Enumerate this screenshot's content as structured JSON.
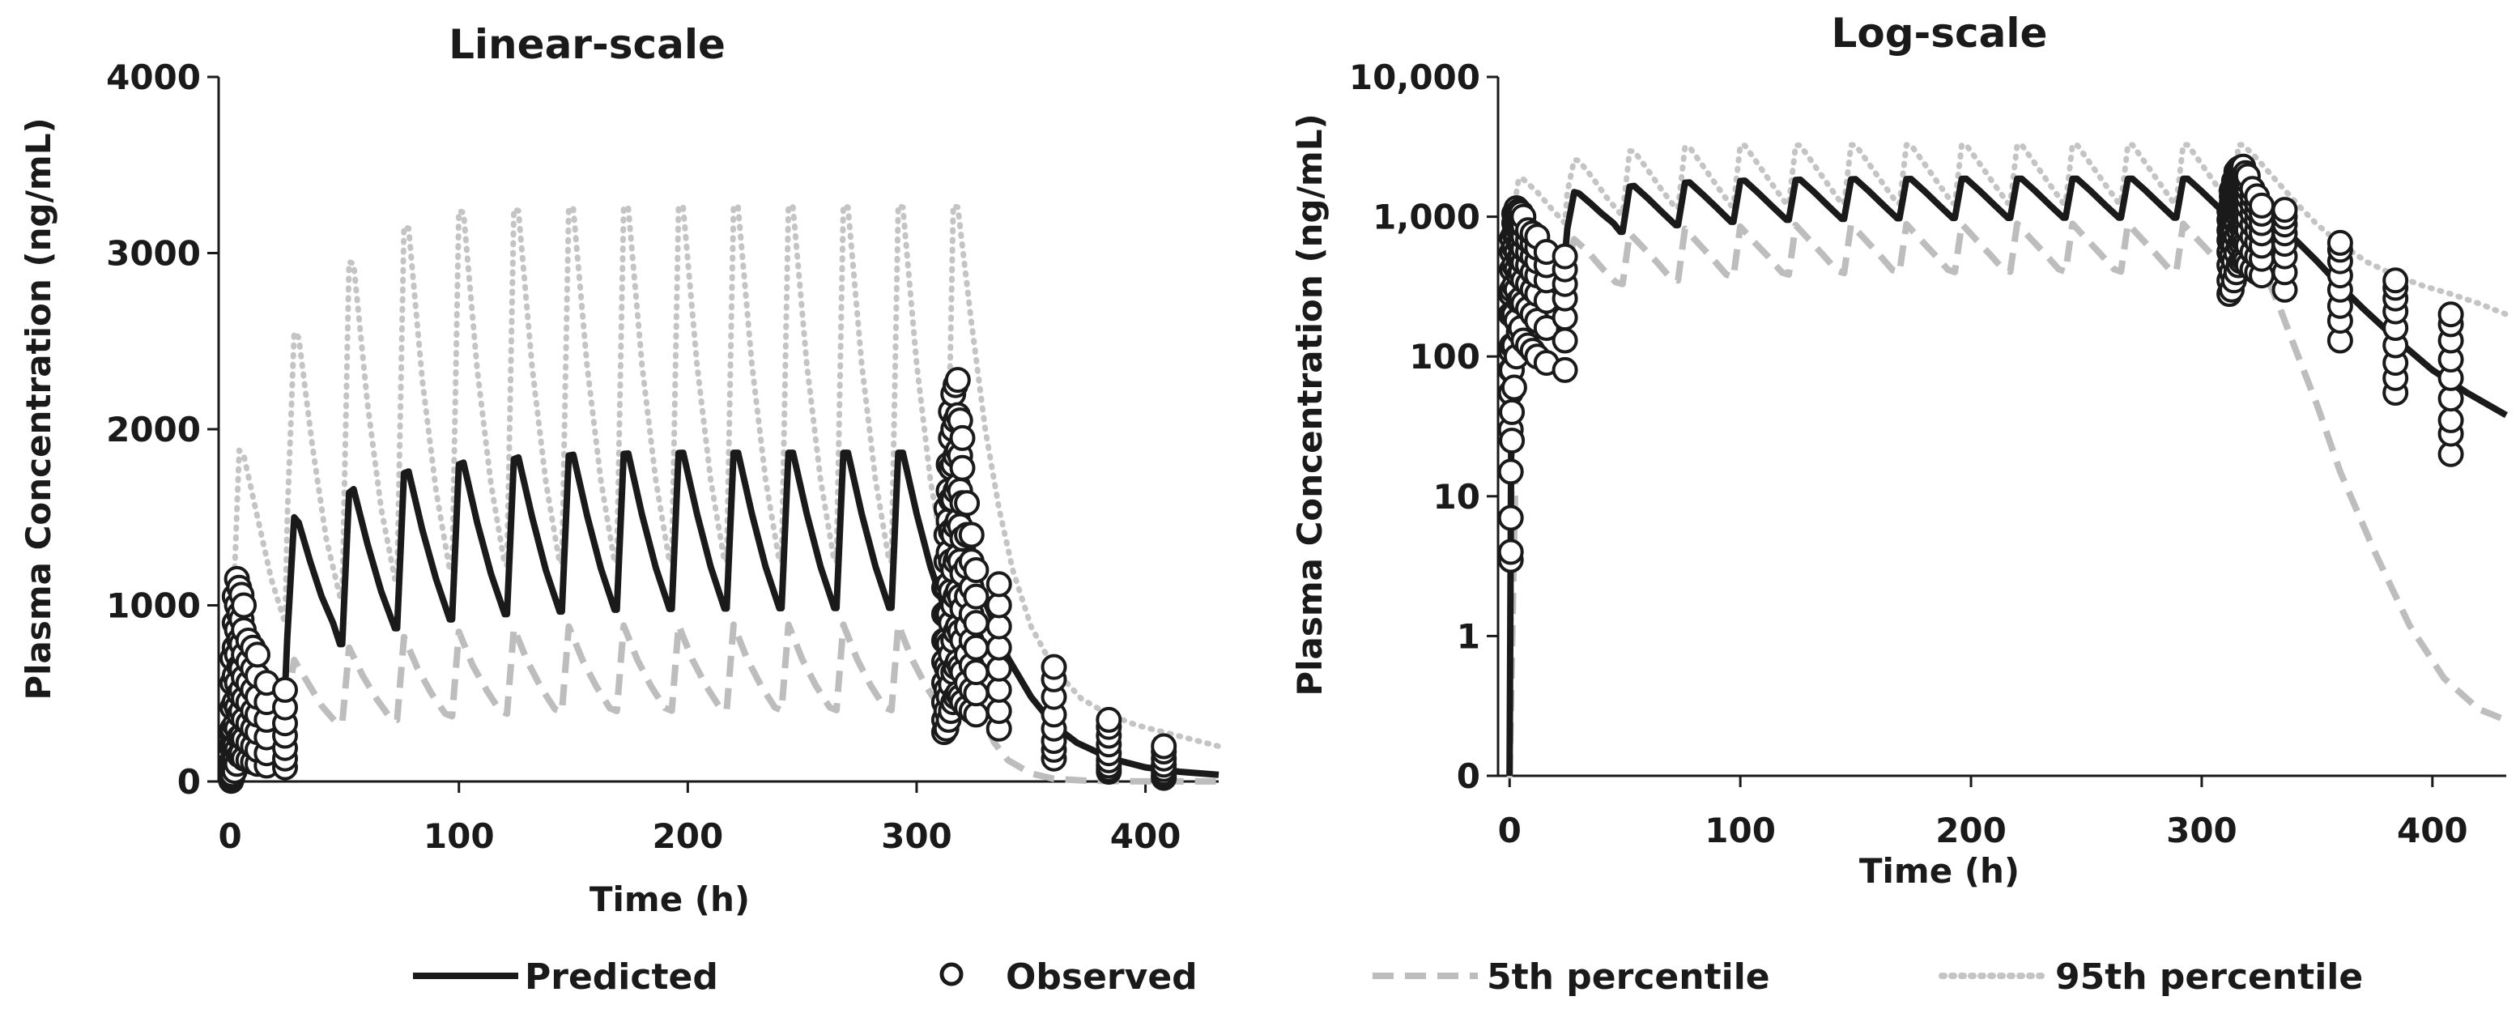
{
  "chart_data": [
    {
      "type": "line",
      "scale": "linear",
      "title": "Linear-scale",
      "xlabel": "Time (h)",
      "ylabel": "Plasma Concentration (ng/mL)",
      "xlim": [
        -5,
        432
      ],
      "ylim": [
        0,
        4000
      ],
      "xticks": [
        0,
        100,
        200,
        300,
        400
      ],
      "xtick_labels": [
        "0",
        "100",
        "200",
        "300",
        "400"
      ],
      "yticks": [
        0,
        1000,
        2000,
        3000,
        4000
      ],
      "ytick_labels": [
        "0",
        "1000",
        "2000",
        "3000",
        "4000"
      ],
      "grid": false
    },
    {
      "type": "line",
      "scale": "log",
      "title": "Log-scale",
      "xlabel": "Time (h)",
      "ylabel": "Plasma Concentration (ng/mL)",
      "xlim": [
        -5,
        432
      ],
      "ylim": [
        0.1,
        10000
      ],
      "xticks": [
        0,
        100,
        200,
        300,
        400
      ],
      "xtick_labels": [
        "0",
        "100",
        "200",
        "300",
        "400"
      ],
      "yticks": [
        0.1,
        1,
        10,
        100,
        1000,
        10000
      ],
      "ytick_labels": [
        "0",
        "1",
        "10",
        "100",
        "1,000",
        "10,000"
      ],
      "grid": false
    }
  ],
  "series": {
    "predicted": {
      "name": "Predicted",
      "points": [
        [
          0,
          0
        ],
        [
          1,
          280
        ],
        [
          3,
          620
        ],
        [
          6,
          700
        ],
        [
          10,
          620
        ],
        [
          16,
          560
        ],
        [
          22,
          530
        ],
        [
          24,
          520
        ],
        [
          25,
          820
        ],
        [
          28,
          1500
        ],
        [
          30,
          1470
        ],
        [
          35,
          1250
        ],
        [
          40,
          1050
        ],
        [
          45,
          900
        ],
        [
          48,
          780
        ],
        [
          49,
          780
        ],
        [
          52,
          1640
        ],
        [
          54,
          1660
        ],
        [
          60,
          1350
        ],
        [
          66,
          1080
        ],
        [
          72,
          870
        ],
        [
          73,
          870
        ],
        [
          76,
          1750
        ],
        [
          78,
          1760
        ],
        [
          84,
          1430
        ],
        [
          90,
          1150
        ],
        [
          96,
          920
        ],
        [
          97,
          920
        ],
        [
          100,
          1800
        ],
        [
          102,
          1810
        ],
        [
          108,
          1470
        ],
        [
          114,
          1180
        ],
        [
          120,
          950
        ],
        [
          121,
          950
        ],
        [
          124,
          1830
        ],
        [
          126,
          1840
        ],
        [
          132,
          1500
        ],
        [
          138,
          1200
        ],
        [
          144,
          965
        ],
        [
          145,
          965
        ],
        [
          148,
          1850
        ],
        [
          150,
          1855
        ],
        [
          156,
          1510
        ],
        [
          162,
          1210
        ],
        [
          168,
          975
        ],
        [
          169,
          975
        ],
        [
          172,
          1860
        ],
        [
          174,
          1862
        ],
        [
          180,
          1515
        ],
        [
          186,
          1215
        ],
        [
          192,
          980
        ],
        [
          193,
          980
        ],
        [
          196,
          1865
        ],
        [
          198,
          1866
        ],
        [
          204,
          1520
        ],
        [
          210,
          1220
        ],
        [
          216,
          982
        ],
        [
          217,
          982
        ],
        [
          220,
          1866
        ],
        [
          222,
          1866
        ],
        [
          228,
          1520
        ],
        [
          234,
          1220
        ],
        [
          240,
          984
        ],
        [
          241,
          984
        ],
        [
          244,
          1866
        ],
        [
          246,
          1866
        ],
        [
          252,
          1520
        ],
        [
          258,
          1220
        ],
        [
          264,
          985
        ],
        [
          265,
          985
        ],
        [
          268,
          1866
        ],
        [
          270,
          1866
        ],
        [
          276,
          1520
        ],
        [
          282,
          1222
        ],
        [
          288,
          986
        ],
        [
          289,
          986
        ],
        [
          292,
          1866
        ],
        [
          294,
          1866
        ],
        [
          300,
          1520
        ],
        [
          306,
          1222
        ],
        [
          312,
          986
        ],
        [
          313,
          986
        ],
        [
          316,
          1866
        ],
        [
          318,
          1866
        ],
        [
          322,
          1500
        ],
        [
          326,
          1220
        ],
        [
          330,
          1020
        ],
        [
          335,
          860
        ],
        [
          340,
          700
        ],
        [
          350,
          480
        ],
        [
          360,
          320
        ],
        [
          370,
          220
        ],
        [
          385,
          130
        ],
        [
          400,
          80
        ],
        [
          415,
          55
        ],
        [
          432,
          38
        ]
      ]
    },
    "observed": {
      "name": "Observed",
      "times": [
        0.5,
        1,
        2,
        3,
        4,
        5,
        6,
        8,
        10,
        12,
        16,
        24,
        312,
        313,
        314,
        315,
        316,
        317,
        318,
        319,
        320,
        322,
        324,
        326,
        336,
        360,
        384,
        408
      ],
      "values": [
        [
          3.5,
          4,
          7,
          15,
          30,
          55,
          80,
          110,
          200,
          280
        ],
        [
          25,
          40,
          80,
          120,
          200,
          300,
          420,
          560,
          700
        ],
        [
          60,
          120,
          200,
          320,
          450,
          600,
          760,
          900,
          1050
        ],
        [
          100,
          180,
          300,
          420,
          560,
          720,
          860,
          1000,
          1150
        ],
        [
          150,
          250,
          380,
          500,
          650,
          800,
          950,
          1100
        ],
        [
          160,
          260,
          400,
          520,
          640,
          780,
          920,
          1060
        ],
        [
          130,
          240,
          350,
          470,
          590,
          720,
          860,
          1000
        ],
        [
          120,
          220,
          330,
          450,
          560,
          680,
          800
        ],
        [
          110,
          200,
          300,
          400,
          520,
          640,
          760
        ],
        [
          100,
          180,
          280,
          380,
          480,
          600,
          720
        ],
        [
          90,
          160,
          250,
          350,
          450,
          560
        ],
        [
          80,
          130,
          190,
          260,
          330,
          420,
          520
        ],
        [
          280,
          350,
          450,
          560,
          680,
          800,
          950,
          1100
        ],
        [
          300,
          400,
          520,
          650,
          800,
          960,
          1100,
          1250,
          1400,
          1550
        ],
        [
          350,
          480,
          620,
          780,
          950,
          1120,
          1300,
          1480,
          1650,
          1800
        ],
        [
          400,
          550,
          720,
          900,
          1080,
          1250,
          1420,
          1600,
          1780,
          1950,
          2100
        ],
        [
          450,
          620,
          800,
          1000,
          1200,
          1400,
          1600,
          1800,
          2000,
          2200
        ],
        [
          480,
          650,
          850,
          1050,
          1250,
          1450,
          1650,
          1850,
          2050,
          2250
        ],
        [
          500,
          680,
          880,
          1080,
          1280,
          1480,
          1680,
          1880,
          2080,
          2280
        ],
        [
          480,
          650,
          850,
          1050,
          1250,
          1450,
          1650,
          1850,
          2050
        ],
        [
          450,
          620,
          800,
          980,
          1180,
          1380,
          1580,
          1780,
          1950
        ],
        [
          420,
          560,
          720,
          880,
          1050,
          1220,
          1400,
          1580
        ],
        [
          400,
          520,
          660,
          800,
          950,
          1100,
          1250,
          1400
        ],
        [
          380,
          500,
          620,
          760,
          900,
          1050,
          1200
        ],
        [
          300,
          400,
          520,
          640,
          760,
          880,
          1000,
          1120
        ],
        [
          130,
          180,
          230,
          300,
          380,
          480,
          580,
          650
        ],
        [
          55,
          70,
          90,
          120,
          160,
          210,
          260,
          310,
          350
        ],
        [
          20,
          28,
          35,
          50,
          70,
          95,
          130,
          170,
          200
        ]
      ]
    },
    "p5": {
      "name": "5th percentile",
      "points": [
        [
          0,
          0
        ],
        [
          4,
          250
        ],
        [
          8,
          320
        ],
        [
          14,
          300
        ],
        [
          20,
          270
        ],
        [
          24,
          260
        ],
        [
          25,
          450
        ],
        [
          28,
          690
        ],
        [
          34,
          560
        ],
        [
          40,
          430
        ],
        [
          46,
          340
        ],
        [
          49,
          330
        ],
        [
          52,
          760
        ],
        [
          58,
          600
        ],
        [
          64,
          470
        ],
        [
          70,
          360
        ],
        [
          73,
          350
        ],
        [
          76,
          820
        ],
        [
          82,
          640
        ],
        [
          88,
          500
        ],
        [
          94,
          385
        ],
        [
          97,
          370
        ],
        [
          100,
          850
        ],
        [
          106,
          660
        ],
        [
          112,
          520
        ],
        [
          118,
          400
        ],
        [
          121,
          385
        ],
        [
          124,
          870
        ],
        [
          130,
          680
        ],
        [
          136,
          530
        ],
        [
          142,
          410
        ],
        [
          145,
          395
        ],
        [
          148,
          880
        ],
        [
          154,
          690
        ],
        [
          160,
          540
        ],
        [
          166,
          415
        ],
        [
          169,
          400
        ],
        [
          172,
          885
        ],
        [
          178,
          690
        ],
        [
          184,
          540
        ],
        [
          190,
          418
        ],
        [
          193,
          402
        ],
        [
          196,
          888
        ],
        [
          202,
          692
        ],
        [
          208,
          542
        ],
        [
          214,
          420
        ],
        [
          217,
          404
        ],
        [
          220,
          890
        ],
        [
          226,
          694
        ],
        [
          232,
          544
        ],
        [
          238,
          421
        ],
        [
          241,
          405
        ],
        [
          244,
          890
        ],
        [
          250,
          694
        ],
        [
          256,
          544
        ],
        [
          262,
          421
        ],
        [
          265,
          405
        ],
        [
          268,
          890
        ],
        [
          274,
          694
        ],
        [
          280,
          544
        ],
        [
          286,
          421
        ],
        [
          289,
          405
        ],
        [
          292,
          890
        ],
        [
          298,
          694
        ],
        [
          304,
          544
        ],
        [
          310,
          421
        ],
        [
          313,
          405
        ],
        [
          316,
          890
        ],
        [
          322,
          600
        ],
        [
          328,
          380
        ],
        [
          334,
          220
        ],
        [
          340,
          120
        ],
        [
          350,
          45
        ],
        [
          360,
          15
        ],
        [
          375,
          4
        ],
        [
          390,
          1.2
        ],
        [
          405,
          0.5
        ],
        [
          420,
          0.3
        ],
        [
          432,
          0.25
        ]
      ]
    },
    "p95": {
      "name": "95th percentile",
      "points": [
        [
          0,
          0
        ],
        [
          2,
          1200
        ],
        [
          4,
          1880
        ],
        [
          6,
          1850
        ],
        [
          12,
          1500
        ],
        [
          18,
          1150
        ],
        [
          24,
          900
        ],
        [
          25,
          1500
        ],
        [
          28,
          2550
        ],
        [
          30,
          2520
        ],
        [
          36,
          1900
        ],
        [
          42,
          1380
        ],
        [
          48,
          1050
        ],
        [
          49,
          1050
        ],
        [
          52,
          2950
        ],
        [
          54,
          2940
        ],
        [
          60,
          2150
        ],
        [
          66,
          1550
        ],
        [
          72,
          1150
        ],
        [
          73,
          1150
        ],
        [
          76,
          3150
        ],
        [
          78,
          3140
        ],
        [
          84,
          2280
        ],
        [
          90,
          1650
        ],
        [
          96,
          1200
        ],
        [
          97,
          1200
        ],
        [
          100,
          3240
        ],
        [
          102,
          3230
        ],
        [
          108,
          2340
        ],
        [
          114,
          1690
        ],
        [
          120,
          1230
        ],
        [
          121,
          1230
        ],
        [
          124,
          3250
        ],
        [
          126,
          3240
        ],
        [
          132,
          2350
        ],
        [
          138,
          1700
        ],
        [
          144,
          1240
        ],
        [
          145,
          1240
        ],
        [
          148,
          3260
        ],
        [
          150,
          3250
        ],
        [
          156,
          2360
        ],
        [
          162,
          1710
        ],
        [
          168,
          1245
        ],
        [
          169,
          1245
        ],
        [
          172,
          3265
        ],
        [
          174,
          3255
        ],
        [
          180,
          2365
        ],
        [
          186,
          1712
        ],
        [
          192,
          1248
        ],
        [
          193,
          1248
        ],
        [
          196,
          3268
        ],
        [
          198,
          3258
        ],
        [
          204,
          2368
        ],
        [
          210,
          1714
        ],
        [
          216,
          1250
        ],
        [
          217,
          1250
        ],
        [
          220,
          3270
        ],
        [
          222,
          3260
        ],
        [
          228,
          2370
        ],
        [
          234,
          1715
        ],
        [
          240,
          1250
        ],
        [
          241,
          1250
        ],
        [
          244,
          3270
        ],
        [
          246,
          3260
        ],
        [
          252,
          2370
        ],
        [
          258,
          1715
        ],
        [
          264,
          1250
        ],
        [
          265,
          1250
        ],
        [
          268,
          3270
        ],
        [
          270,
          3260
        ],
        [
          276,
          2370
        ],
        [
          282,
          1715
        ],
        [
          288,
          1250
        ],
        [
          289,
          1250
        ],
        [
          292,
          3270
        ],
        [
          294,
          3260
        ],
        [
          300,
          2370
        ],
        [
          306,
          1715
        ],
        [
          312,
          1250
        ],
        [
          313,
          1250
        ],
        [
          316,
          3270
        ],
        [
          318,
          3260
        ],
        [
          324,
          2600
        ],
        [
          330,
          2000
        ],
        [
          336,
          1550
        ],
        [
          342,
          1200
        ],
        [
          350,
          880
        ],
        [
          360,
          640
        ],
        [
          372,
          470
        ],
        [
          384,
          380
        ],
        [
          396,
          320
        ],
        [
          408,
          280
        ],
        [
          420,
          240
        ],
        [
          432,
          200
        ]
      ]
    }
  },
  "legend": {
    "predicted": "Predicted",
    "observed": "Observed",
    "p5": "5th percentile",
    "p95": "95th percentile"
  }
}
